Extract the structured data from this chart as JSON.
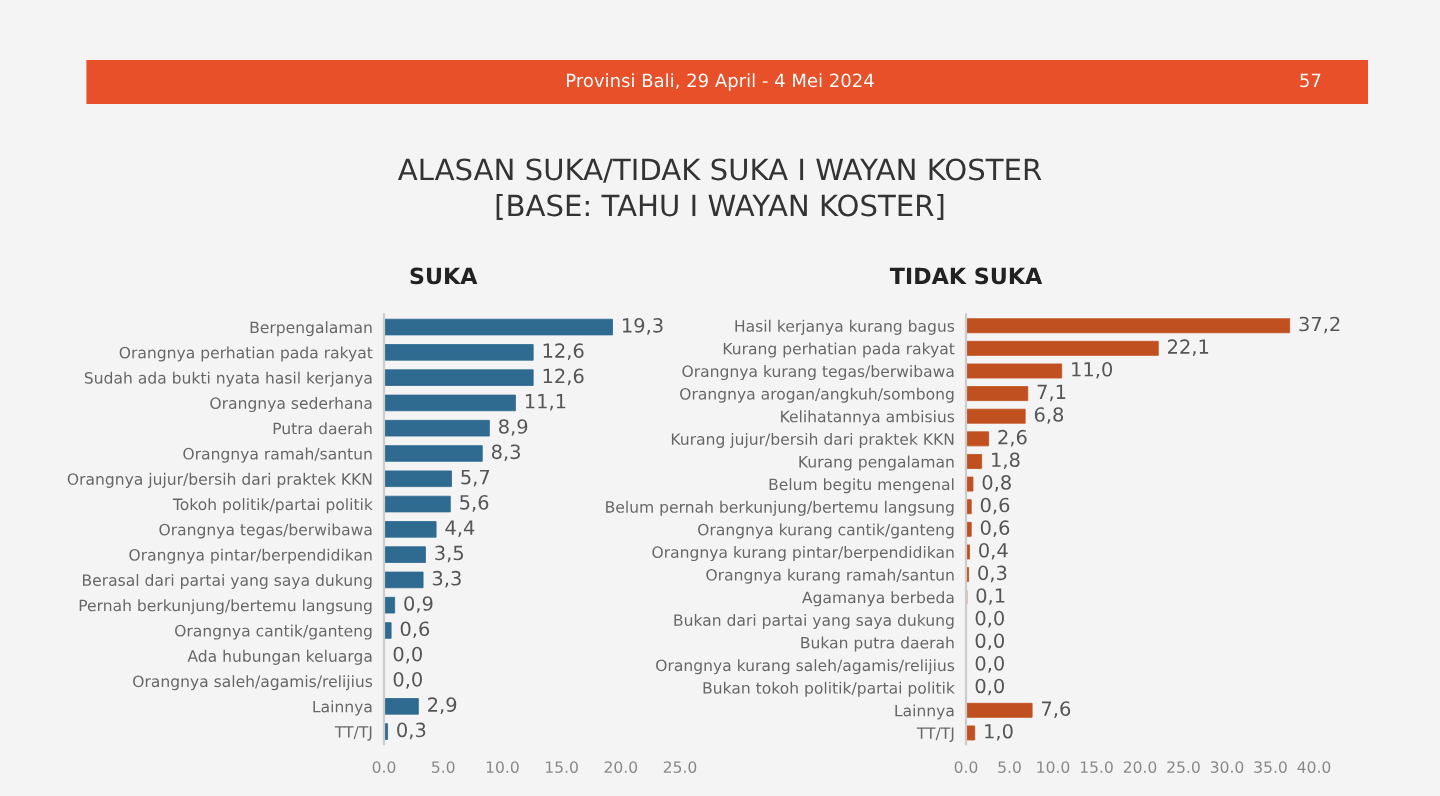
{
  "chart_data": [
    {
      "type": "bar",
      "orientation": "horizontal",
      "title": "SUKA",
      "annotations": [
        "Provinsi Bali, 29 April - 4 Mei 2024",
        "57",
        "ALASAN SUKA/TIDAK SUKA I WAYAN KOSTER",
        "[BASE: TAHU I WAYAN KOSTER]"
      ],
      "categories": [
        "Berpengalaman",
        "Orangnya perhatian pada rakyat",
        "Sudah ada bukti nyata hasil kerjanya",
        "Orangnya sederhana",
        "Putra daerah",
        "Orangnya ramah/santun",
        "Orangnya jujur/bersih dari praktek KKN",
        "Tokoh politik/partai politik",
        "Orangnya tegas/berwibawa",
        "Orangnya pintar/berpendidikan",
        "Berasal dari partai yang saya dukung",
        "Pernah berkunjung/bertemu langsung",
        "Orangnya cantik/ganteng",
        "Ada hubungan keluarga",
        "Orangnya saleh/agamis/relijius",
        "Lainnya",
        "TT/TJ"
      ],
      "values": [
        19.3,
        12.6,
        12.6,
        11.1,
        8.9,
        8.3,
        5.7,
        5.6,
        4.4,
        3.5,
        3.3,
        0.9,
        0.6,
        0.0,
        0.0,
        2.9,
        0.3
      ],
      "value_labels": [
        "19,3",
        "12,6",
        "12,6",
        "11,1",
        "8,9",
        "8,3",
        "5,7",
        "5,6",
        "4,4",
        "3,5",
        "3,3",
        "0,9",
        "0,6",
        "0,0",
        "0,0",
        "2,9",
        "0,3"
      ],
      "color": "#2f6b90",
      "xlim": [
        0,
        25
      ],
      "xticks": [
        {
          "value": 0,
          "label": "0.0"
        },
        {
          "value": 5,
          "label": "5.0"
        },
        {
          "value": 10,
          "label": "10.0"
        },
        {
          "value": 15,
          "label": "15.0"
        },
        {
          "value": 20,
          "label": "20.0"
        },
        {
          "value": 25,
          "label": "25.0"
        }
      ],
      "grid": false
    },
    {
      "type": "bar",
      "orientation": "horizontal",
      "title": "TIDAK SUKA",
      "categories": [
        "Hasil kerjanya kurang bagus",
        "Kurang perhatian pada rakyat",
        "Orangnya kurang tegas/berwibawa",
        "Orangnya arogan/angkuh/sombong",
        "Kelihatannya ambisius",
        "Kurang jujur/bersih dari praktek KKN",
        "Kurang pengalaman",
        "Belum begitu mengenal",
        "Belum pernah berkunjung/bertemu langsung",
        "Orangnya kurang cantik/ganteng",
        "Orangnya kurang pintar/berpendidikan",
        "Orangnya kurang ramah/santun",
        "Agamanya berbeda",
        "Bukan dari partai yang saya dukung",
        "Bukan putra daerah",
        "Orangnya kurang saleh/agamis/relijius",
        "Bukan tokoh politik/partai politik",
        "Lainnya",
        "TT/TJ"
      ],
      "values": [
        37.2,
        22.1,
        11.0,
        7.1,
        6.8,
        2.6,
        1.8,
        0.8,
        0.6,
        0.6,
        0.4,
        0.3,
        0.1,
        0.0,
        0.0,
        0.0,
        0.0,
        7.6,
        1.0
      ],
      "value_labels": [
        "37,2",
        "22,1",
        "11,0",
        "7,1",
        "6,8",
        "2,6",
        "1,8",
        "0,8",
        "0,6",
        "0,6",
        "0,4",
        "0,3",
        "0,1",
        "0,0",
        "0,0",
        "0,0",
        "0,0",
        "7,6",
        "1,0"
      ],
      "color": "#c0501f",
      "xlim": [
        0,
        40
      ],
      "xticks": [
        {
          "value": 0,
          "label": "0.0"
        },
        {
          "value": 5,
          "label": "5.0"
        },
        {
          "value": 10,
          "label": "10.0"
        },
        {
          "value": 15,
          "label": "15.0"
        },
        {
          "value": 20,
          "label": "20.0"
        },
        {
          "value": 25,
          "label": "25.0"
        },
        {
          "value": 30,
          "label": "30.0"
        },
        {
          "value": 35,
          "label": "35.0"
        },
        {
          "value": 40,
          "label": "40.0"
        }
      ],
      "grid": false
    }
  ]
}
